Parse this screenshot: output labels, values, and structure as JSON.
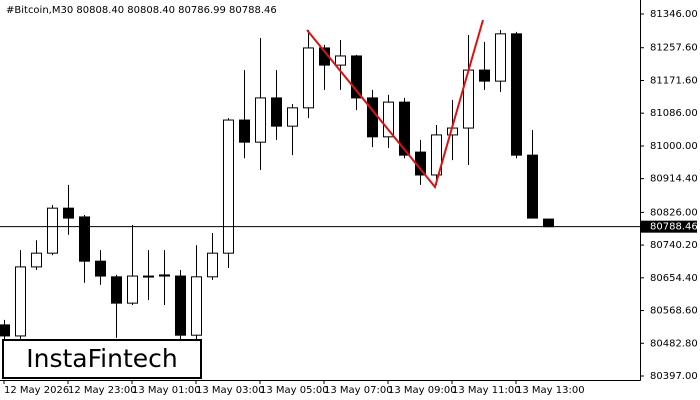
{
  "chart_data": {
    "type": "candlestick",
    "title": "#Bitcoin,M30  80808.40 80808.40 80786.99 80788.46",
    "logo": "InstaFintech",
    "categories": [
      "12 May 2026",
      null,
      null,
      null,
      "12 May 23:00",
      null,
      null,
      null,
      "13 May 01:00",
      null,
      null,
      null,
      "13 May 03:00",
      null,
      null,
      null,
      "13 May 05:00",
      null,
      null,
      null,
      "13 May 07:00",
      null,
      null,
      null,
      "13 May 09:00",
      null,
      null,
      null,
      "13 May 11:00",
      null,
      null,
      null,
      "13 May 13:00",
      null,
      null
    ],
    "open": [
      80531,
      80502,
      80683,
      80719,
      80837,
      80814,
      80698,
      80657,
      80588,
      80659,
      80662,
      80659,
      80504,
      80657,
      80719,
      81068,
      81010,
      81126,
      81052,
      81100,
      81257,
      81212,
      81236,
      81126,
      81024,
      81115,
      80984,
      80924,
      81029,
      81047,
      81199,
      81170,
      81294,
      80976,
      80808.4
    ],
    "high": [
      80544,
      80727,
      80753,
      80845,
      80898,
      80819,
      80727,
      80662,
      80793,
      80727,
      80727,
      80675,
      80740,
      80772,
      81073,
      81199,
      81283,
      81199,
      81110,
      81304,
      81265,
      81278,
      81239,
      81147,
      81134,
      81126,
      81016,
      81055,
      81121,
      81291,
      81273,
      81304,
      81299,
      81042,
      80808.4
    ],
    "low": [
      80491,
      80491,
      80675,
      80714,
      80767,
      80641,
      80636,
      80497,
      80583,
      80596,
      80583,
      80478,
      80491,
      80649,
      80680,
      80968,
      80937,
      81016,
      80976,
      81073,
      81147,
      81147,
      81094,
      80997,
      80995,
      80968,
      80898,
      80898,
      80963,
      80950,
      81147,
      81142,
      80968,
      80811,
      80786.99
    ],
    "close": [
      80502,
      80683,
      80719,
      80837,
      80811,
      80698,
      80659,
      80588,
      80659,
      80657,
      80659,
      80504,
      80657,
      80719,
      81068,
      81010,
      81126,
      81052,
      81100,
      81257,
      81212,
      81236,
      81126,
      81024,
      81115,
      80976,
      80924,
      81029,
      81047,
      81199,
      81170,
      81294,
      80976,
      80811,
      80788.46
    ],
    "current_price": 80788.46,
    "ylim": [
      80397,
      81346
    ],
    "yticks": [
      {
        "value": 81346,
        "label": "81346.00"
      },
      {
        "value": 81257.6,
        "label": "81257.60"
      },
      {
        "value": 81171.6,
        "label": "81171.60"
      },
      {
        "value": 81086,
        "label": "81086.00"
      },
      {
        "value": 81000,
        "label": "81000.00"
      },
      {
        "value": 80914.4,
        "label": "80914.40"
      },
      {
        "value": 80826,
        "label": "80826.00"
      },
      {
        "value": 80740.2,
        "label": "80740.20"
      },
      {
        "value": 80654.4,
        "label": "80654.40"
      },
      {
        "value": 80568.6,
        "label": "80568.60"
      },
      {
        "value": 80482.8,
        "label": "80482.80"
      },
      {
        "value": 80397,
        "label": "80397.00"
      }
    ],
    "bull_color": "#ffffff",
    "bear_color": "#000000",
    "pattern_color": "#e01010"
  }
}
